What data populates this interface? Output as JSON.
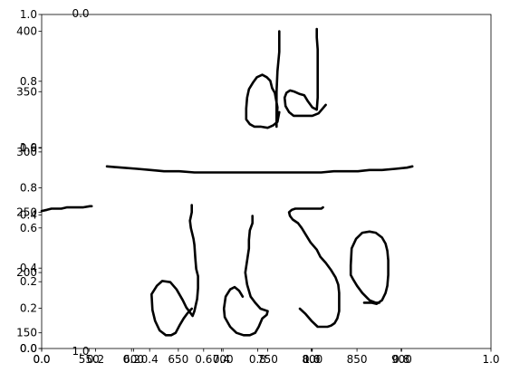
{
  "chart_data": {
    "type": "line",
    "title": "",
    "xlabel": "",
    "ylabel": "",
    "grid": false,
    "legend": "none",
    "stroke_color": "#000000",
    "overlay_axes": {
      "x_ticks": [
        "0.0",
        "0.2",
        "0.4",
        "0.6",
        "0.8",
        "1.0"
      ],
      "y_ticks": [
        "0.0",
        "0.2",
        "0.4",
        "0.6",
        "0.8",
        "1.0"
      ],
      "stray_label_top": "0.0",
      "stray_label_bottom": "1.0"
    },
    "secondary_overlay_axes": {
      "x_ticks": [
        "0.0",
        "0.2",
        "0.4",
        "0.6",
        "0.8",
        "1.0"
      ],
      "y_ticks": [
        "0.0",
        "0.2",
        "0.4",
        "0.6",
        "0.8",
        "1.0"
      ]
    },
    "data_axes": {
      "x_ticks": [
        "550",
        "600",
        "650",
        "700",
        "750",
        "800",
        "850",
        "900"
      ],
      "y_ticks": [
        "150",
        "200",
        "250",
        "300",
        "350",
        "400"
      ],
      "xlim": [
        497,
        1000
      ],
      "ylim": [
        137,
        414
      ]
    },
    "strokes": [
      {
        "x": [
          497,
          503,
          508,
          513,
          519,
          525,
          531,
          537,
          543,
          551,
          553
        ],
        "y": [
          251,
          252,
          253,
          253,
          253,
          254,
          254,
          254,
          254,
          255,
          255
        ]
      },
      {
        "x": [
          570,
          587,
          604,
          619,
          634,
          651,
          668,
          685,
          702,
          719,
          736,
          753,
          770,
          787,
          802,
          810,
          824,
          836,
          851,
          864,
          878,
          893,
          906,
          912
        ],
        "y": [
          288,
          287,
          286,
          285,
          284,
          284,
          283,
          283,
          283,
          283,
          283,
          283,
          283,
          283,
          283,
          283,
          284,
          284,
          284,
          285,
          285,
          286,
          287,
          288
        ]
      },
      {
        "x": [
          763,
          763,
          761,
          760,
          760,
          760,
          760,
          760,
          761,
          758,
          755,
          753,
          749,
          744,
          738,
          734,
          729,
          727,
          726,
          726,
          730,
          735,
          742,
          750,
          756,
          761,
          763
        ],
        "y": [
          400,
          383,
          367,
          350,
          333,
          323,
          321,
          325,
          337,
          349,
          353,
          359,
          362,
          364,
          362,
          358,
          352,
          345,
          336,
          327,
          323,
          321,
          321,
          320,
          322,
          325,
          333
        ]
      },
      {
        "x": [
          805,
          805,
          806,
          806,
          806,
          806,
          805,
          800,
          795,
          791,
          786,
          780,
          775,
          771,
          769,
          770,
          774,
          779,
          784,
          790,
          795,
          800,
          807,
          815
        ],
        "y": [
          402,
          395,
          385,
          372,
          360,
          345,
          335,
          337,
          342,
          347,
          348,
          350,
          351,
          349,
          345,
          338,
          333,
          330,
          330,
          330,
          330,
          330,
          332,
          339
        ]
      },
      {
        "x": [
          665,
          665,
          663,
          664,
          667,
          668,
          669,
          670,
          672,
          672,
          671,
          668,
          666,
          662,
          659,
          655,
          648,
          641,
          632,
          626,
          620,
          621,
          624,
          629,
          636,
          642,
          647,
          652,
          656,
          660,
          665
        ],
        "y": [
          256,
          250,
          243,
          237,
          228,
          223,
          212,
          203,
          197,
          187,
          178,
          168,
          164,
          168,
          171,
          177,
          186,
          192,
          193,
          189,
          182,
          169,
          160,
          152,
          148,
          148,
          150,
          157,
          162,
          166,
          170
        ]
      },
      {
        "x": [
          733,
          733,
          730,
          729,
          729,
          727,
          725,
          727,
          731,
          736,
          742,
          750,
          749,
          744,
          740,
          736,
          730,
          723,
          715,
          708,
          702,
          701,
          703,
          708,
          713,
          718,
          722
        ],
        "y": [
          247,
          241,
          235,
          227,
          220,
          210,
          200,
          190,
          180,
          175,
          170,
          168,
          165,
          162,
          155,
          150,
          148,
          148,
          150,
          155,
          163,
          170,
          180,
          186,
          188,
          185,
          180
        ]
      },
      {
        "x": [
          786,
          792,
          799,
          806,
          812,
          814,
          817,
          821,
          825,
          828,
          830,
          830,
          830,
          829,
          826,
          821,
          815,
          809,
          805,
          798,
          793,
          788,
          784,
          778,
          775,
          774,
          777,
          781,
          788,
          796,
          803,
          810,
          812
        ],
        "y": [
          170,
          166,
          160,
          155,
          155,
          155,
          155,
          156,
          158,
          162,
          168,
          177,
          183,
          190,
          196,
          202,
          208,
          213,
          219,
          225,
          231,
          237,
          241,
          244,
          247,
          250,
          252,
          253,
          253,
          253,
          253,
          253,
          254
        ]
      },
      {
        "x": [
          875,
          871,
          864,
          856,
          850,
          846,
          843,
          843,
          844,
          849,
          856,
          864,
          871,
          878,
          882,
          884,
          885,
          885,
          884,
          882,
          878,
          872,
          866,
          862,
          858
        ],
        "y": [
          175,
          175,
          177,
          183,
          189,
          194,
          198,
          206,
          220,
          228,
          233,
          234,
          233,
          229,
          224,
          218,
          210,
          198,
          189,
          183,
          177,
          174,
          175,
          175,
          175
        ]
      }
    ]
  }
}
